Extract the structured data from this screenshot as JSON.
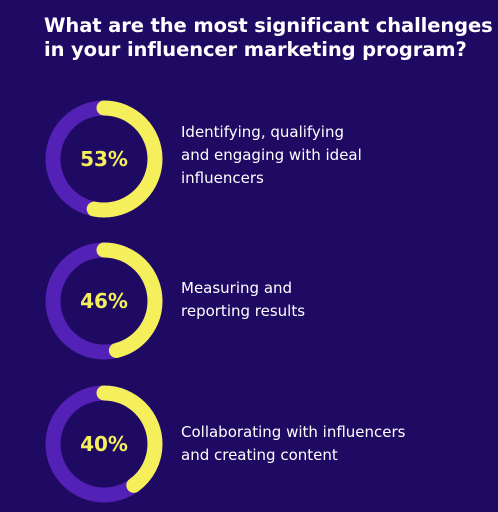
{
  "title": {
    "lines": [
      "What are the most significant challenges",
      "in your influencer marketing program?"
    ]
  },
  "colors": {
    "background": "#1f0a63",
    "ring_track": "#5421b6",
    "ring_value": "#f5ef5c",
    "text": "#ffffff"
  },
  "chart_data": {
    "type": "pie",
    "title": "What are the most significant challenges in your influencer marketing program?",
    "unit": "%",
    "items": [
      {
        "value": 53,
        "value_label": "53%",
        "label_lines": [
          "Identifying, qualifying",
          "and engaging with ideal",
          "influencers"
        ]
      },
      {
        "value": 46,
        "value_label": "46%",
        "label_lines": [
          "Measuring and",
          "reporting results"
        ]
      },
      {
        "value": 40,
        "value_label": "40%",
        "label_lines": [
          "Collaborating with influencers",
          "and creating content"
        ]
      }
    ]
  }
}
